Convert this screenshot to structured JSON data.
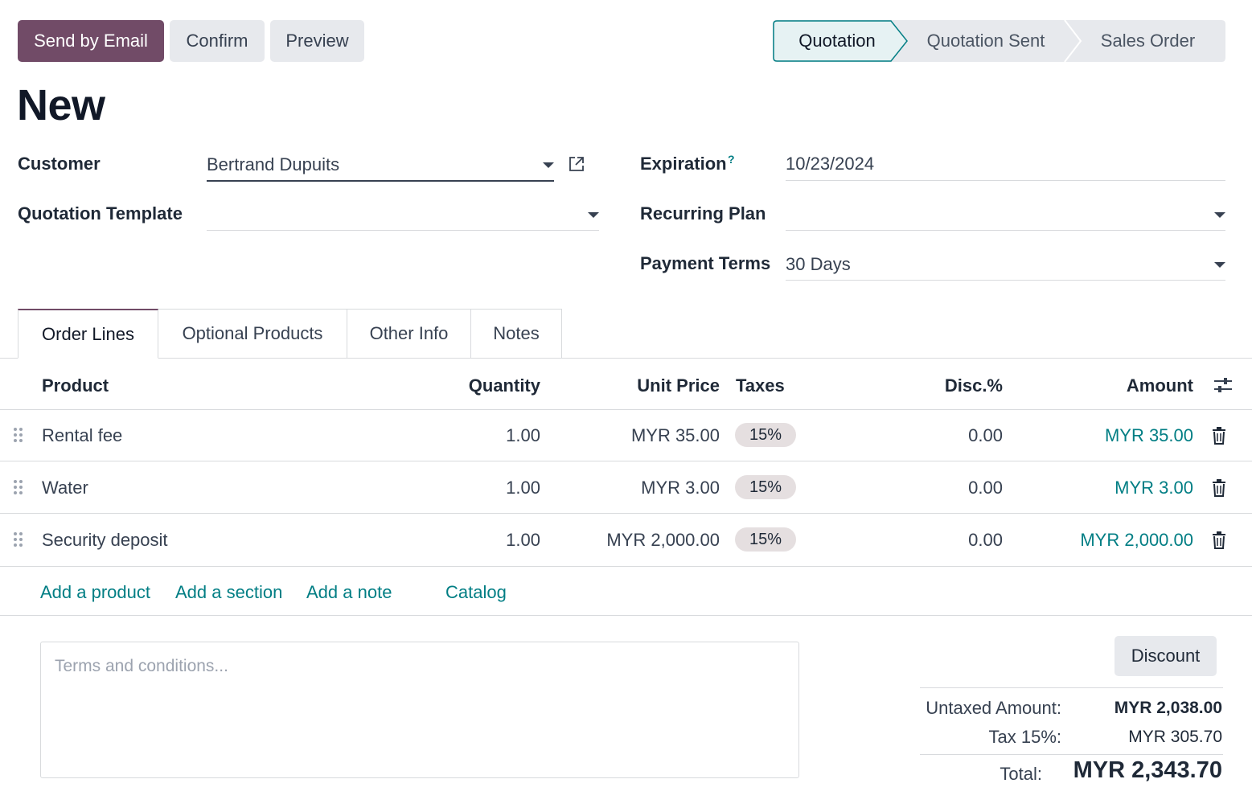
{
  "toolbar": {
    "send_by_email": "Send by Email",
    "confirm": "Confirm",
    "preview": "Preview"
  },
  "status_stages": [
    {
      "label": "Quotation",
      "active": true
    },
    {
      "label": "Quotation Sent",
      "active": false
    },
    {
      "label": "Sales Order",
      "active": false
    }
  ],
  "record_title": "New",
  "form": {
    "customer": {
      "label": "Customer",
      "value": "Bertrand Dupuits"
    },
    "quotation_template": {
      "label": "Quotation Template",
      "value": ""
    },
    "expiration": {
      "label": "Expiration",
      "help": "?",
      "value": "10/23/2024"
    },
    "recurring_plan": {
      "label": "Recurring Plan",
      "value": ""
    },
    "payment_terms": {
      "label": "Payment Terms",
      "value": "30 Days"
    }
  },
  "tabs": [
    {
      "label": "Order Lines",
      "active": true
    },
    {
      "label": "Optional Products",
      "active": false
    },
    {
      "label": "Other Info",
      "active": false
    },
    {
      "label": "Notes",
      "active": false
    }
  ],
  "table": {
    "headers": {
      "product": "Product",
      "quantity": "Quantity",
      "unit_price": "Unit Price",
      "taxes": "Taxes",
      "discount": "Disc.%",
      "amount": "Amount"
    },
    "rows": [
      {
        "product": "Rental fee",
        "quantity": "1.00",
        "unit_price": "MYR 35.00",
        "taxes": "15%",
        "discount": "0.00",
        "amount": "MYR 35.00"
      },
      {
        "product": "Water",
        "quantity": "1.00",
        "unit_price": "MYR 3.00",
        "taxes": "15%",
        "discount": "0.00",
        "amount": "MYR 3.00"
      },
      {
        "product": "Security deposit",
        "quantity": "1.00",
        "unit_price": "MYR 2,000.00",
        "taxes": "15%",
        "discount": "0.00",
        "amount": "MYR 2,000.00"
      }
    ],
    "actions": {
      "add_product": "Add a product",
      "add_section": "Add a section",
      "add_note": "Add a note",
      "catalog": "Catalog"
    }
  },
  "terms": {
    "placeholder": "Terms and conditions..."
  },
  "discount_button": "Discount",
  "totals": {
    "untaxed_label": "Untaxed Amount:",
    "untaxed_value": "MYR 2,038.00",
    "tax_label": "Tax 15%:",
    "tax_value": "MYR 305.70",
    "total_label": "Total:",
    "total_value": "MYR 2,343.70"
  },
  "colors": {
    "primary": "#714b67",
    "accent_teal": "#017e84",
    "active_stage_bg": "#e6f2f3",
    "inactive_stage_bg": "#e7e9ed"
  }
}
